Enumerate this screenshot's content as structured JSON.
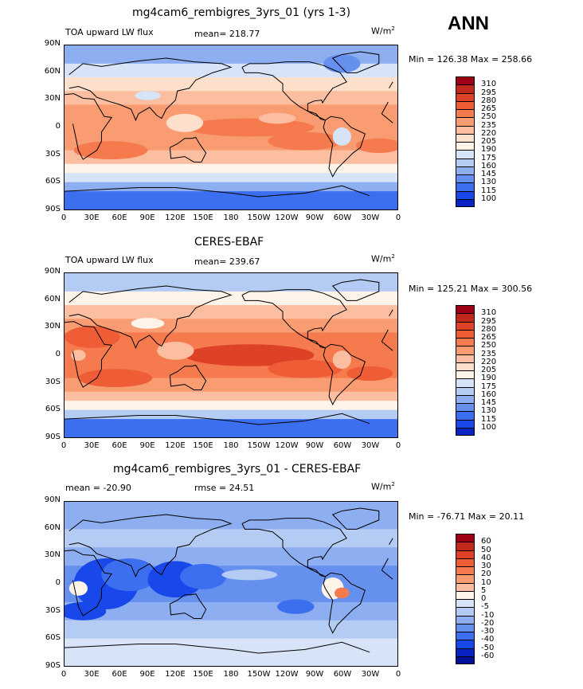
{
  "season": "ANN",
  "panels": [
    {
      "title": "mg4cam6_rembigres_3yrs_01 (yrs 1-3)",
      "left_label": "TOA upward LW flux",
      "center_label": "mean= 218.77",
      "units": "W/m",
      "units_sup": "2",
      "minmax": "Min = 126.38 Max = 258.66",
      "colorbar_levels": [
        "310",
        "295",
        "280",
        "265",
        "250",
        "235",
        "220",
        "205",
        "190",
        "175",
        "160",
        "145",
        "130",
        "115",
        "100"
      ],
      "colorbar_colors": [
        "#9e0015",
        "#c1281c",
        "#dd4126",
        "#ee5d36",
        "#f57b4e",
        "#f99c72",
        "#fcbea0",
        "#fde0cc",
        "#fdf3e8",
        "#d7e3f7",
        "#b4ccf3",
        "#8daef0",
        "#6690ee",
        "#3c6ff0",
        "#1948ea",
        "#0a22c4",
        "#00129a"
      ],
      "style": "model"
    },
    {
      "title": "CERES-EBAF",
      "left_label": "TOA upward LW flux",
      "center_label": "mean= 239.67",
      "units": "W/m",
      "units_sup": "2",
      "minmax": "Min = 125.21 Max = 300.56",
      "colorbar_levels": [
        "310",
        "295",
        "280",
        "265",
        "250",
        "235",
        "220",
        "205",
        "190",
        "175",
        "160",
        "145",
        "130",
        "115",
        "100"
      ],
      "colorbar_colors": [
        "#9e0015",
        "#c1281c",
        "#dd4126",
        "#ee5d36",
        "#f57b4e",
        "#f99c72",
        "#fcbea0",
        "#fde0cc",
        "#fdf3e8",
        "#d7e3f7",
        "#b4ccf3",
        "#8daef0",
        "#6690ee",
        "#3c6ff0",
        "#1948ea",
        "#0a22c4",
        "#00129a"
      ],
      "style": "obs"
    },
    {
      "title": "mg4cam6_rembigres_3yrs_01 - CERES-EBAF",
      "left_label": "mean = -20.90",
      "center_label": "rmse = 24.51",
      "units": "W/m",
      "units_sup": "2",
      "minmax": "Min = -76.71 Max = 20.11",
      "colorbar_levels": [
        "60",
        "50",
        "40",
        "30",
        "20",
        "10",
        "5",
        "0",
        "-5",
        "-10",
        "-20",
        "-30",
        "-40",
        "-50",
        "-60"
      ],
      "colorbar_colors": [
        "#9e0015",
        "#c1281c",
        "#dd4126",
        "#ee5d36",
        "#f57b4e",
        "#f99c72",
        "#fcbea0",
        "#fdf3e8",
        "#d7e3f7",
        "#b4ccf3",
        "#8daef0",
        "#6690ee",
        "#3c6ff0",
        "#1948ea",
        "#0a22c4",
        "#00129a"
      ],
      "style": "diff"
    }
  ],
  "lat_ticks": [
    "90N",
    "60N",
    "30N",
    "0",
    "30S",
    "60S",
    "90S"
  ],
  "lon_ticks": [
    "0",
    "30E",
    "60E",
    "90E",
    "120E",
    "150E",
    "180",
    "150W",
    "120W",
    "90W",
    "60W",
    "30W",
    "0"
  ],
  "chart_data": [
    {
      "type": "heatmap",
      "title": "mg4cam6_rembigres_3yrs_01 (yrs 1-3)",
      "variable": "TOA upward LW flux",
      "units": "W/m2",
      "mean": 218.77,
      "min": 126.38,
      "max": 258.66,
      "contour_levels": [
        100,
        115,
        130,
        145,
        160,
        175,
        190,
        205,
        220,
        235,
        250,
        265,
        280,
        295,
        310
      ],
      "x_ticks": [
        "0",
        "30E",
        "60E",
        "90E",
        "120E",
        "150E",
        "180",
        "150W",
        "120W",
        "90W",
        "60W",
        "30W",
        "0"
      ],
      "y_ticks": [
        "90N",
        "60N",
        "30N",
        "0",
        "30S",
        "60S",
        "90S"
      ]
    },
    {
      "type": "heatmap",
      "title": "CERES-EBAF",
      "variable": "TOA upward LW flux",
      "units": "W/m2",
      "mean": 239.67,
      "min": 125.21,
      "max": 300.56,
      "contour_levels": [
        100,
        115,
        130,
        145,
        160,
        175,
        190,
        205,
        220,
        235,
        250,
        265,
        280,
        295,
        310
      ],
      "x_ticks": [
        "0",
        "30E",
        "60E",
        "90E",
        "120E",
        "150E",
        "180",
        "150W",
        "120W",
        "90W",
        "60W",
        "30W",
        "0"
      ],
      "y_ticks": [
        "90N",
        "60N",
        "30N",
        "0",
        "30S",
        "60S",
        "90S"
      ]
    },
    {
      "type": "heatmap",
      "title": "mg4cam6_rembigres_3yrs_01 - CERES-EBAF",
      "units": "W/m2",
      "mean": -20.9,
      "rmse": 24.51,
      "min": -76.71,
      "max": 20.11,
      "contour_levels": [
        -60,
        -50,
        -40,
        -30,
        -20,
        -10,
        -5,
        0,
        5,
        10,
        20,
        30,
        40,
        50,
        60
      ],
      "x_ticks": [
        "0",
        "30E",
        "60E",
        "90E",
        "120E",
        "150E",
        "180",
        "150W",
        "120W",
        "90W",
        "60W",
        "30W",
        "0"
      ],
      "y_ticks": [
        "90N",
        "60N",
        "30N",
        "0",
        "30S",
        "60S",
        "90S"
      ]
    }
  ]
}
